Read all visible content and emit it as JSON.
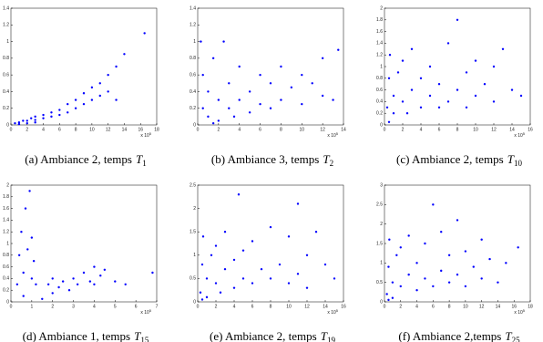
{
  "chart_data": [
    {
      "type": "scatter",
      "caption": "(a) Ambiance 2, temps",
      "caption_var": "T",
      "caption_sub": "1",
      "x_multiplier": "x 10",
      "x_exponent": "5",
      "color": "#0000ff",
      "xlim": [
        0,
        18
      ],
      "xticks": [
        0,
        2,
        4,
        6,
        8,
        10,
        12,
        14,
        16,
        18
      ],
      "ylim": [
        0,
        1.4
      ],
      "yticks": [
        0,
        0.2,
        0.4,
        0.6,
        0.8,
        1,
        1.2,
        1.4
      ],
      "x": [
        0.5,
        1,
        1.5,
        2,
        2.5,
        3,
        3,
        4,
        4,
        5,
        5,
        6,
        6,
        7,
        7,
        8,
        8,
        9,
        9,
        10,
        10,
        11,
        11,
        12,
        12,
        13,
        13,
        14,
        16.5,
        1,
        2,
        3
      ],
      "values": [
        0.02,
        0.03,
        0.05,
        0.05,
        0.08,
        0.1,
        0.06,
        0.12,
        0.08,
        0.15,
        0.1,
        0.18,
        0.12,
        0.25,
        0.15,
        0.3,
        0.2,
        0.38,
        0.25,
        0.45,
        0.3,
        0.5,
        0.35,
        0.6,
        0.4,
        0.3,
        0.7,
        0.85,
        1.1,
        0.01,
        0.02,
        0.03
      ]
    },
    {
      "type": "scatter",
      "caption": "(b) Ambiance 3, temps",
      "caption_var": "T",
      "caption_sub": "2",
      "x_multiplier": "x 10",
      "x_exponent": "5",
      "color": "#0000ff",
      "xlim": [
        0,
        14
      ],
      "xticks": [
        0,
        2,
        4,
        6,
        8,
        10,
        12,
        14
      ],
      "ylim": [
        0,
        1.4
      ],
      "yticks": [
        0,
        0.2,
        0.4,
        0.6,
        0.8,
        1,
        1.2,
        1.4
      ],
      "x": [
        0.3,
        0.5,
        1,
        1,
        1.5,
        2,
        2,
        2.5,
        3,
        3,
        3.5,
        4,
        4,
        5,
        5,
        6,
        6,
        7,
        7,
        8,
        8,
        9,
        10,
        10,
        11,
        12,
        12,
        13,
        13.5,
        0.5,
        1.5
      ],
      "values": [
        1.0,
        0.6,
        0.4,
        0.1,
        0.8,
        0.3,
        0.05,
        1.0,
        0.5,
        0.2,
        0.1,
        0.7,
        0.3,
        0.4,
        0.15,
        0.6,
        0.25,
        0.5,
        0.2,
        0.7,
        0.3,
        0.45,
        0.6,
        0.25,
        0.5,
        0.8,
        0.35,
        0.3,
        0.9,
        0.2,
        0.02
      ]
    },
    {
      "type": "scatter",
      "caption": "(c) Ambiance 2, temps",
      "caption_var": "T",
      "caption_sub": "10",
      "x_multiplier": "x 10",
      "x_exponent": "5",
      "color": "#0000ff",
      "xlim": [
        0,
        16
      ],
      "xticks": [
        0,
        2,
        4,
        6,
        8,
        10,
        12,
        14,
        16
      ],
      "ylim": [
        0,
        2
      ],
      "yticks": [
        0,
        0.2,
        0.4,
        0.6,
        0.8,
        1,
        1.2,
        1.4,
        1.6,
        1.8,
        2
      ],
      "x": [
        0.3,
        0.5,
        0.6,
        1,
        1,
        1.5,
        2,
        2,
        2.5,
        3,
        3,
        4,
        4,
        5,
        5,
        6,
        6,
        7,
        7,
        8,
        8,
        9,
        9,
        10,
        10,
        11,
        12,
        12,
        13,
        14,
        15,
        0.5
      ],
      "values": [
        0.3,
        0.8,
        1.2,
        0.5,
        0.2,
        0.9,
        0.4,
        1.1,
        0.2,
        0.6,
        1.3,
        0.3,
        0.8,
        0.5,
        1.0,
        0.3,
        0.7,
        1.4,
        0.4,
        0.6,
        1.8,
        0.3,
        0.9,
        0.5,
        1.1,
        0.7,
        0.4,
        1.0,
        1.3,
        0.6,
        0.5,
        0.05
      ]
    },
    {
      "type": "scatter",
      "caption": "(d) Ambiance 1, temps",
      "caption_var": "T",
      "caption_sub": "15",
      "x_multiplier": "x 10",
      "x_exponent": "5",
      "color": "#0000ff",
      "xlim": [
        0,
        7
      ],
      "xticks": [
        0,
        1,
        2,
        3,
        4,
        5,
        6,
        7
      ],
      "ylim": [
        0,
        2
      ],
      "yticks": [
        0,
        0.2,
        0.4,
        0.6,
        0.8,
        1,
        1.2,
        1.4,
        1.6,
        1.8,
        2
      ],
      "x": [
        0.3,
        0.4,
        0.5,
        0.6,
        0.7,
        0.8,
        0.9,
        1,
        1,
        1.1,
        1.2,
        0.6,
        1.8,
        2,
        2,
        2.3,
        2.5,
        2.8,
        3,
        3.2,
        3.5,
        3.8,
        4,
        4,
        4.3,
        4.5,
        5,
        5.5,
        6.8,
        1.5
      ],
      "values": [
        0.3,
        0.8,
        1.2,
        0.5,
        1.6,
        0.9,
        1.9,
        0.4,
        1.1,
        0.7,
        0.3,
        0.1,
        0.3,
        0.15,
        0.4,
        0.25,
        0.35,
        0.2,
        0.4,
        0.3,
        0.5,
        0.35,
        0.6,
        0.3,
        0.45,
        0.55,
        0.35,
        0.3,
        0.5,
        0.05
      ]
    },
    {
      "type": "scatter",
      "caption": "(e) Ambiance 2, temps",
      "caption_var": "T",
      "caption_sub": "19",
      "x_multiplier": "x 10",
      "x_exponent": "5",
      "color": "#0000ff",
      "xlim": [
        0,
        16
      ],
      "xticks": [
        0,
        2,
        4,
        6,
        8,
        10,
        12,
        14,
        16
      ],
      "ylim": [
        0,
        2.5
      ],
      "yticks": [
        0,
        0.5,
        1,
        1.5,
        2,
        2.5
      ],
      "x": [
        0.3,
        0.5,
        0.6,
        1,
        1,
        1.5,
        2,
        2,
        2.5,
        3,
        3,
        4,
        4,
        4.5,
        5,
        5,
        6,
        6,
        7,
        8,
        8,
        9,
        10,
        10,
        11,
        11,
        12,
        12,
        13,
        14,
        15,
        0.5
      ],
      "values": [
        0.2,
        0.8,
        1.4,
        0.5,
        0.1,
        1.0,
        0.4,
        1.2,
        0.2,
        0.7,
        1.5,
        0.3,
        0.9,
        2.3,
        0.5,
        1.1,
        0.4,
        1.3,
        0.7,
        0.5,
        1.6,
        0.8,
        0.4,
        1.4,
        2.1,
        0.6,
        1.0,
        0.3,
        1.5,
        0.8,
        0.5,
        0.05
      ]
    },
    {
      "type": "scatter",
      "caption": "(f) Ambiance 2,temps",
      "caption_var": "T",
      "caption_sub": "25",
      "x_multiplier": "x 10",
      "x_exponent": "5",
      "color": "#0000ff",
      "xlim": [
        0,
        18
      ],
      "xticks": [
        0,
        2,
        4,
        6,
        8,
        10,
        12,
        14,
        16,
        18
      ],
      "ylim": [
        0,
        3
      ],
      "yticks": [
        0,
        0.5,
        1,
        1.5,
        2,
        2.5,
        3
      ],
      "x": [
        0.3,
        0.5,
        0.6,
        1,
        1,
        1.5,
        2,
        2,
        3,
        3,
        4,
        4,
        5,
        5,
        6,
        6,
        7,
        7,
        8,
        8,
        9,
        9,
        10,
        10,
        11,
        12,
        12,
        13,
        14,
        15,
        16.5,
        0.5
      ],
      "values": [
        0.2,
        0.9,
        1.6,
        0.5,
        0.1,
        1.2,
        0.4,
        1.4,
        0.7,
        1.7,
        0.3,
        1.0,
        0.6,
        1.5,
        0.4,
        2.5,
        0.8,
        1.8,
        0.5,
        1.2,
        2.1,
        0.7,
        0.4,
        1.3,
        0.9,
        0.6,
        1.6,
        1.1,
        0.5,
        1.0,
        1.4,
        0.05
      ]
    }
  ]
}
